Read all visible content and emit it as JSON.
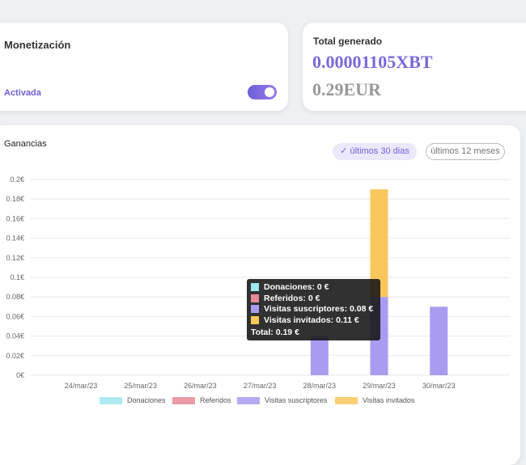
{
  "monetization": {
    "title": "Monetización",
    "status": "Activada",
    "enabled": true
  },
  "total": {
    "title": "Total generado",
    "btc": "0.00001105XBT",
    "eur": "0.29EUR"
  },
  "earnings": {
    "title": "Ganancias",
    "range_active": "últimos 30 dias",
    "range_other": "últimos 12 meses"
  },
  "colors": {
    "accent": "#7b68ee",
    "Donaciones": "#a0e6ee",
    "Referidos": "#e68a98",
    "Visitas suscriptores": "#a99cf0",
    "Visitas invitados": "#f9c75c"
  },
  "tooltip": {
    "lines": [
      "Donaciones: 0 €",
      "Referidos: 0 €",
      "Visitas suscriptores: 0.08 €",
      "Visitas invitados: 0.11 €"
    ],
    "total": "Total: 0.19 €"
  },
  "chart_data": {
    "type": "bar",
    "stacked": true,
    "categories": [
      "24/mar/23",
      "25/mar/23",
      "26/mar/23",
      "27/mar/23",
      "28/mar/23",
      "29/mar/23",
      "30/mar/23"
    ],
    "series": [
      {
        "name": "Donaciones",
        "values": [
          0,
          0,
          0,
          0,
          0,
          0,
          0
        ]
      },
      {
        "name": "Referidos",
        "values": [
          0,
          0,
          0,
          0,
          0,
          0,
          0
        ]
      },
      {
        "name": "Visitas suscriptores",
        "values": [
          0,
          0,
          0,
          0,
          0.04,
          0.08,
          0.07
        ]
      },
      {
        "name": "Visitas invitados",
        "values": [
          0,
          0,
          0,
          0,
          0,
          0.11,
          0
        ]
      }
    ],
    "yticks": [
      "0€",
      "0.02€",
      "0.04€",
      "0.06€",
      "0.08€",
      "0.1€",
      "0.12€",
      "0.14€",
      "0.16€",
      "0.18€",
      "0.2€"
    ],
    "ylim": [
      0,
      0.2
    ],
    "grid": true,
    "legend": "bottom"
  }
}
